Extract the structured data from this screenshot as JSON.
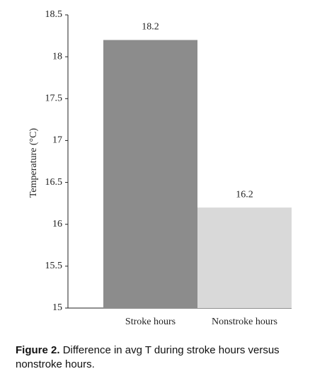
{
  "chart_data": {
    "type": "bar",
    "ylabel": "Temperature (°C)",
    "categories": [
      "Stroke hours",
      "Nonstroke hours"
    ],
    "values": [
      18.2,
      16.2
    ],
    "colors": [
      "#8c8c8c",
      "#d9d9d9"
    ],
    "ylim": [
      15,
      18.5
    ],
    "yticks": [
      15,
      15.5,
      16,
      16.5,
      17,
      17.5,
      18,
      18.5
    ]
  },
  "caption": {
    "label": "Figure 2.",
    "text": "Difference in avg T during stroke hours versus nonstroke hours."
  }
}
